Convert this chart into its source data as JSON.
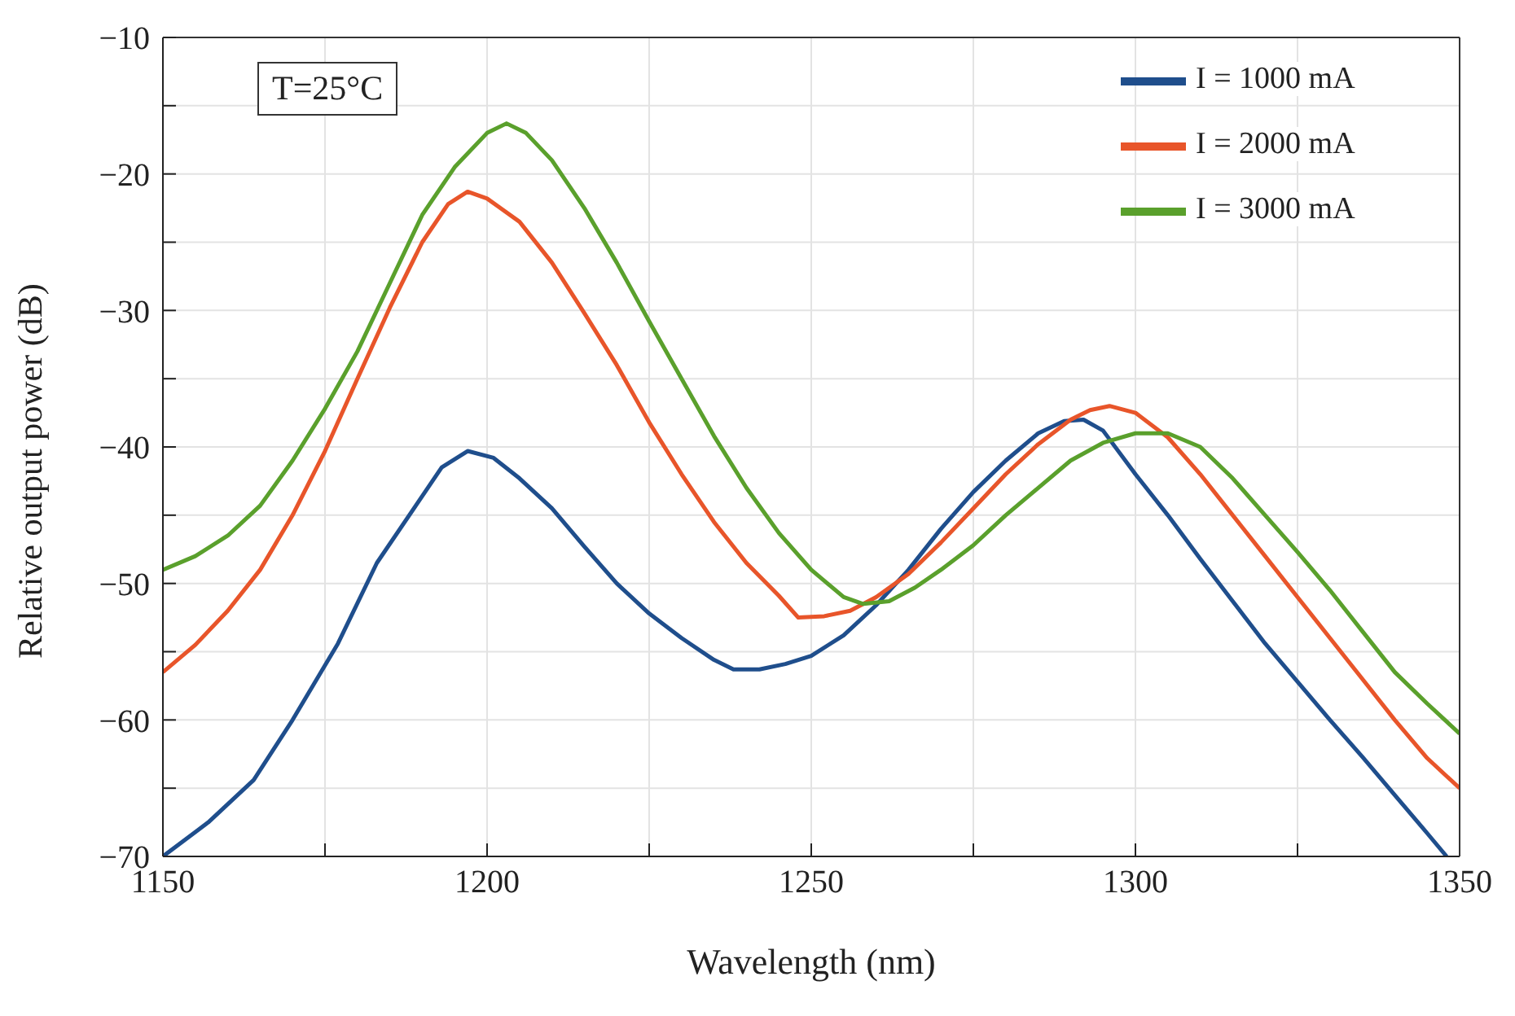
{
  "chart_data": {
    "type": "line",
    "xlabel": "Wavelength (nm)",
    "ylabel": "Relative output power (dB)",
    "annotations": [
      "T=25°C"
    ],
    "xlim": [
      1150,
      1350
    ],
    "xticks": [
      1150,
      {
        "value": 1175,
        "label": null
      },
      1200,
      {
        "value": 1225,
        "label": null
      },
      1250,
      {
        "value": 1275,
        "label": null
      },
      1300,
      {
        "value": 1325,
        "label": null
      },
      1350
    ],
    "ylim": [
      -70,
      -10
    ],
    "yticks": [
      -70,
      {
        "value": -65,
        "label": null
      },
      -60,
      {
        "value": -55,
        "label": null
      },
      -50,
      {
        "value": -45,
        "label": null
      },
      -40,
      {
        "value": -35,
        "label": null
      },
      -30,
      {
        "value": -25,
        "label": null
      },
      -20,
      {
        "value": -15,
        "label": null
      },
      -10
    ],
    "grid": true,
    "legend": "top right",
    "marker": "none",
    "line_style": "solid",
    "series": [
      {
        "name": "I = 1000 mA",
        "color": "#1f4e8c",
        "x": [
          1150,
          1157,
          1164,
          1170,
          1177,
          1183,
          1189,
          1193,
          1197,
          1201,
          1205,
          1210,
          1215,
          1220,
          1225,
          1230,
          1235,
          1238,
          1242,
          1246,
          1250,
          1255,
          1260,
          1265,
          1270,
          1275,
          1280,
          1285,
          1289,
          1292,
          1295,
          1300,
          1305,
          1310,
          1315,
          1320,
          1325,
          1330,
          1335,
          1340,
          1345,
          1348
        ],
        "values": [
          -70,
          -67.5,
          -64.4,
          -60,
          -54.4,
          -48.5,
          -44.3,
          -41.5,
          -40.3,
          -40.8,
          -42.3,
          -44.5,
          -47.3,
          -50,
          -52.2,
          -54,
          -55.6,
          -56.3,
          -56.3,
          -55.9,
          -55.3,
          -53.8,
          -51.6,
          -49,
          -46,
          -43.3,
          -41,
          -39,
          -38.1,
          -38,
          -38.8,
          -42,
          -45,
          -48.2,
          -51.3,
          -54.4,
          -57.2,
          -60,
          -62.7,
          -65.5,
          -68.3,
          -70
        ]
      },
      {
        "name": "I = 2000 mA",
        "color": "#e8552a",
        "x": [
          1150,
          1155,
          1160,
          1165,
          1170,
          1175,
          1180,
          1185,
          1190,
          1194,
          1197,
          1200,
          1205,
          1210,
          1215,
          1220,
          1225,
          1230,
          1235,
          1240,
          1245,
          1248,
          1252,
          1256,
          1260,
          1265,
          1270,
          1275,
          1280,
          1285,
          1290,
          1293,
          1296,
          1300,
          1305,
          1310,
          1315,
          1320,
          1325,
          1330,
          1335,
          1340,
          1345,
          1350
        ],
        "values": [
          -56.5,
          -54.5,
          -52,
          -49,
          -45,
          -40.3,
          -35,
          -29.8,
          -25,
          -22.2,
          -21.3,
          -21.8,
          -23.5,
          -26.5,
          -30.2,
          -34,
          -38.2,
          -42,
          -45.5,
          -48.5,
          -50.9,
          -52.5,
          -52.4,
          -52,
          -51,
          -49.3,
          -47,
          -44.5,
          -42,
          -39.8,
          -38,
          -37.3,
          -37,
          -37.5,
          -39.3,
          -42,
          -45,
          -48,
          -51,
          -54,
          -57,
          -60,
          -62.8,
          -65
        ]
      },
      {
        "name": "I = 3000 mA",
        "color": "#5aa02c",
        "x": [
          1150,
          1155,
          1160,
          1165,
          1170,
          1175,
          1180,
          1185,
          1190,
          1195,
          1200,
          1203,
          1206,
          1210,
          1215,
          1220,
          1225,
          1230,
          1235,
          1240,
          1245,
          1250,
          1255,
          1258,
          1262,
          1266,
          1270,
          1275,
          1280,
          1285,
          1290,
          1295,
          1300,
          1305,
          1310,
          1315,
          1320,
          1325,
          1330,
          1335,
          1340,
          1345,
          1350
        ],
        "values": [
          -49,
          -48,
          -46.5,
          -44.3,
          -41,
          -37.2,
          -33,
          -28,
          -23,
          -19.5,
          -17,
          -16.3,
          -17,
          -19,
          -22.5,
          -26.5,
          -30.8,
          -35,
          -39.2,
          -43,
          -46.3,
          -49,
          -51,
          -51.5,
          -51.3,
          -50.3,
          -49,
          -47.2,
          -45,
          -43,
          -41,
          -39.7,
          -39,
          -39,
          -40,
          -42.3,
          -45,
          -47.7,
          -50.5,
          -53.5,
          -56.5,
          -58.8,
          -61
        ]
      }
    ]
  }
}
